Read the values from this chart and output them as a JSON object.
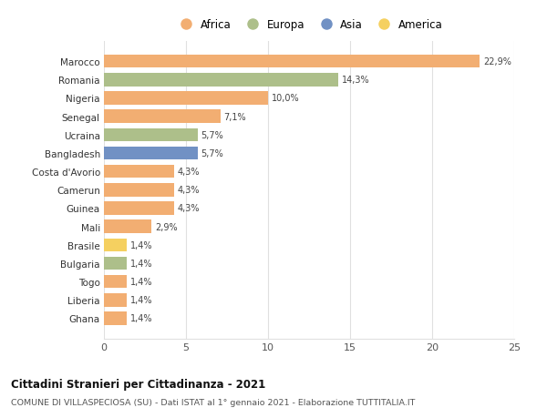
{
  "countries": [
    "Marocco",
    "Romania",
    "Nigeria",
    "Senegal",
    "Ucraina",
    "Bangladesh",
    "Costa d'Avorio",
    "Camerun",
    "Guinea",
    "Mali",
    "Brasile",
    "Bulgaria",
    "Togo",
    "Liberia",
    "Ghana"
  ],
  "values": [
    22.9,
    14.3,
    10.0,
    7.1,
    5.7,
    5.7,
    4.3,
    4.3,
    4.3,
    2.9,
    1.4,
    1.4,
    1.4,
    1.4,
    1.4
  ],
  "labels": [
    "22,9%",
    "14,3%",
    "10,0%",
    "7,1%",
    "5,7%",
    "5,7%",
    "4,3%",
    "4,3%",
    "4,3%",
    "2,9%",
    "1,4%",
    "1,4%",
    "1,4%",
    "1,4%",
    "1,4%"
  ],
  "colors": [
    "#F2AE72",
    "#ADBF8A",
    "#F2AE72",
    "#F2AE72",
    "#ADBF8A",
    "#7191C4",
    "#F2AE72",
    "#F2AE72",
    "#F2AE72",
    "#F2AE72",
    "#F5D060",
    "#ADBF8A",
    "#F2AE72",
    "#F2AE72",
    "#F2AE72"
  ],
  "legend": [
    {
      "label": "Africa",
      "color": "#F2AE72"
    },
    {
      "label": "Europa",
      "color": "#ADBF8A"
    },
    {
      "label": "Asia",
      "color": "#7191C4"
    },
    {
      "label": "America",
      "color": "#F5D060"
    }
  ],
  "xlim": [
    0,
    25
  ],
  "xticks": [
    0,
    5,
    10,
    15,
    20,
    25
  ],
  "title": "Cittadini Stranieri per Cittadinanza - 2021",
  "subtitle": "COMUNE DI VILLASPECIOSA (SU) - Dati ISTAT al 1° gennaio 2021 - Elaborazione TUTTITALIA.IT",
  "background_color": "#ffffff",
  "grid_color": "#e0e0e0",
  "bar_height": 0.72
}
